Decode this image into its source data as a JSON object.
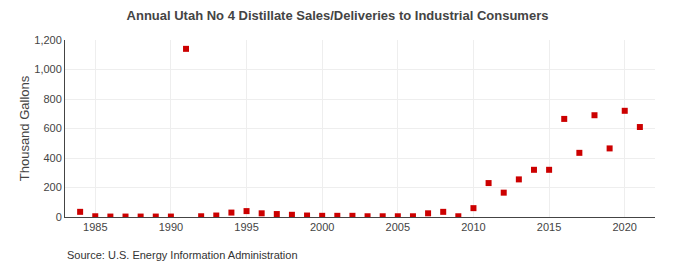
{
  "chart_data": {
    "type": "scatter",
    "title": "Annual Utah No 4 Distillate Sales/Deliveries to Industrial Consumers",
    "ylabel": "Thousand Gallons",
    "annotations": [
      "Source: U.S. Energy Information Administration"
    ],
    "color": "#cc0000",
    "marker": "square",
    "grid": true,
    "xlim": [
      1983,
      2022
    ],
    "ylim": [
      0,
      1200
    ],
    "xticks": [
      1985,
      1990,
      1995,
      2000,
      2005,
      2010,
      2015,
      2020
    ],
    "yticks": [
      0,
      200,
      400,
      600,
      800,
      {
        "value": 1000,
        "label": "1,000"
      },
      {
        "value": 1200,
        "label": "1,200"
      }
    ],
    "x": [
      1984,
      1985,
      1986,
      1987,
      1988,
      1989,
      1990,
      1991,
      1992,
      1993,
      1994,
      1995,
      1996,
      1997,
      1998,
      1999,
      2000,
      2001,
      2002,
      2003,
      2004,
      2005,
      2006,
      2007,
      2008,
      2009,
      2010,
      2011,
      2012,
      2013,
      2014,
      2015,
      2016,
      2017,
      2018,
      2019,
      2020,
      2021
    ],
    "values": [
      35,
      5,
      3,
      3,
      3,
      3,
      3,
      1140,
      5,
      10,
      30,
      40,
      25,
      20,
      15,
      10,
      8,
      8,
      8,
      5,
      5,
      5,
      5,
      25,
      35,
      5,
      60,
      230,
      165,
      255,
      320,
      320,
      665,
      435,
      690,
      465,
      720,
      610
    ]
  }
}
